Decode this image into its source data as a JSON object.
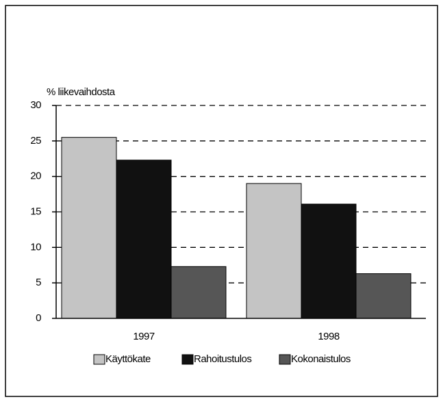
{
  "chart_data": {
    "type": "bar",
    "y_label": "% liikevaihdosta",
    "categories": [
      "1997",
      "1998"
    ],
    "series": [
      {
        "name": "Käyttökate",
        "color": "#c4c4c4",
        "values": [
          25.5,
          19
        ]
      },
      {
        "name": "Rahoitustulos",
        "color": "#111111",
        "values": [
          22.3,
          16.1
        ]
      },
      {
        "name": "Kokonaistulos",
        "color": "#565656",
        "values": [
          7.3,
          6.3
        ]
      }
    ],
    "ylim": [
      0,
      30
    ],
    "yticks": [
      0,
      5,
      10,
      15,
      20,
      25,
      30
    ],
    "grid": true,
    "legend": "bottom"
  }
}
